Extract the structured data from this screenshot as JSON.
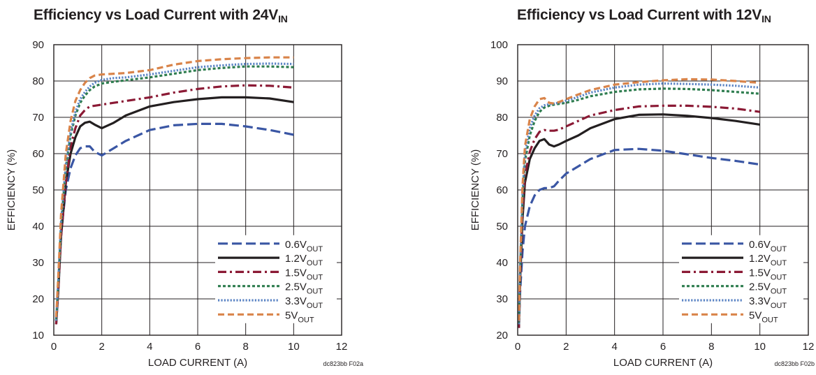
{
  "chart_data": [
    {
      "type": "line",
      "title": "Efficiency vs Load Current with 24V",
      "title_sub": "IN",
      "xlabel": "LOAD CURRENT (A)",
      "ylabel": "EFFICIENCY (%)",
      "xlim": [
        0,
        12
      ],
      "ylim": [
        10,
        90
      ],
      "xticks": [
        "0",
        "2",
        "4",
        "6",
        "8",
        "10",
        "12"
      ],
      "yticks": [
        "10",
        "20",
        "30",
        "40",
        "50",
        "60",
        "70",
        "80",
        "90"
      ],
      "grid": true,
      "legend_position": "bottom-right",
      "footnote": "dc823bb F02a",
      "series": [
        {
          "name": "0.6V",
          "name_sub": "OUT",
          "color": "#3a56a4",
          "style": "long-dash",
          "x": [
            0.1,
            0.2,
            0.3,
            0.5,
            0.7,
            0.9,
            1.1,
            1.3,
            1.5,
            1.7,
            2.0,
            2.5,
            3,
            4,
            5,
            6,
            7,
            8,
            9,
            10
          ],
          "y": [
            14,
            25,
            38,
            50,
            56,
            59.5,
            61.5,
            62,
            62,
            60.5,
            59.5,
            61.5,
            63.5,
            66.5,
            67.8,
            68.2,
            68.2,
            67.5,
            66.5,
            65.2
          ]
        },
        {
          "name": "1.2V",
          "name_sub": "OUT",
          "color": "#231f20",
          "style": "solid",
          "x": [
            0.1,
            0.2,
            0.3,
            0.5,
            0.7,
            0.9,
            1.1,
            1.3,
            1.5,
            1.7,
            2.0,
            2.5,
            3,
            4,
            5,
            6,
            7,
            8,
            9,
            10
          ],
          "y": [
            13,
            24,
            37,
            52,
            60,
            64.5,
            67.5,
            68.5,
            68.8,
            68,
            67,
            68.5,
            70.5,
            73,
            74.2,
            75,
            75.5,
            75.5,
            75.2,
            74.2
          ]
        },
        {
          "name": "1.5V",
          "name_sub": "OUT",
          "color": "#8b1a35",
          "style": "dash-dot",
          "x": [
            0.1,
            0.2,
            0.3,
            0.5,
            0.7,
            0.9,
            1.1,
            1.3,
            1.5,
            1.7,
            2.0,
            2.5,
            3,
            4,
            5,
            6,
            7,
            8,
            9,
            10
          ],
          "y": [
            13,
            24,
            37,
            52,
            62,
            67,
            70.5,
            72,
            73,
            73.2,
            73.5,
            74,
            74.5,
            75.5,
            76.8,
            77.8,
            78.5,
            78.8,
            78.7,
            78.2
          ]
        },
        {
          "name": "2.5V",
          "name_sub": "OUT",
          "color": "#2e7d4f",
          "style": "dotted",
          "x": [
            0.1,
            0.2,
            0.3,
            0.5,
            0.7,
            0.9,
            1.1,
            1.3,
            1.5,
            1.7,
            2.0,
            2.5,
            3,
            4,
            5,
            6,
            7,
            8,
            9,
            10
          ],
          "y": [
            14,
            26,
            40,
            56,
            65,
            70.5,
            74,
            76,
            77.5,
            78.5,
            79.3,
            79.8,
            80.2,
            81,
            82,
            83,
            83.6,
            84,
            84,
            83.8
          ]
        },
        {
          "name": "3.3V",
          "name_sub": "OUT",
          "color": "#5b84c4",
          "style": "fine-dotted",
          "x": [
            0.1,
            0.2,
            0.3,
            0.5,
            0.7,
            0.9,
            1.1,
            1.3,
            1.5,
            1.7,
            2.0,
            2.5,
            3,
            4,
            5,
            6,
            7,
            8,
            9,
            10
          ],
          "y": [
            14,
            27,
            41,
            57,
            66,
            71.5,
            75,
            77,
            78.5,
            79.5,
            80.3,
            80.8,
            81,
            81.8,
            82.8,
            83.8,
            84.3,
            84.7,
            84.8,
            84.7
          ]
        },
        {
          "name": "5V",
          "name_sub": "OUT",
          "color": "#d9844a",
          "style": "dash",
          "x": [
            0.1,
            0.2,
            0.3,
            0.5,
            0.7,
            0.9,
            1.1,
            1.3,
            1.5,
            1.7,
            2.0,
            2.5,
            3,
            4,
            5,
            6,
            7,
            8,
            9,
            10
          ],
          "y": [
            15,
            28,
            43,
            60,
            69,
            74.5,
            77.5,
            79.5,
            80.8,
            81.5,
            81.8,
            82,
            82.2,
            83,
            84.5,
            85.5,
            86,
            86.3,
            86.5,
            86.5
          ]
        }
      ]
    },
    {
      "type": "line",
      "title": "Efficiency vs Load Current with 12V",
      "title_sub": "IN",
      "xlabel": "LOAD CURRENT (A)",
      "ylabel": "EFFICIENCY (%)",
      "xlim": [
        0,
        12
      ],
      "ylim": [
        20,
        100
      ],
      "xticks": [
        "0",
        "2",
        "4",
        "6",
        "8",
        "10",
        "12"
      ],
      "yticks": [
        "20",
        "30",
        "40",
        "50",
        "60",
        "70",
        "80",
        "90",
        "100"
      ],
      "grid": true,
      "legend_position": "bottom-right",
      "footnote": "dc823bb F02b",
      "series": [
        {
          "name": "0.6V",
          "name_sub": "OUT",
          "color": "#3a56a4",
          "style": "long-dash",
          "x": [
            0.05,
            0.1,
            0.2,
            0.3,
            0.5,
            0.7,
            0.9,
            1.1,
            1.3,
            1.5,
            1.7,
            2.0,
            2.5,
            3,
            4,
            5,
            6,
            7,
            8,
            9,
            10
          ],
          "y": [
            22,
            32,
            43,
            50,
            55.5,
            58.5,
            60,
            60.5,
            60.5,
            61,
            62.5,
            64.5,
            66.5,
            68.5,
            71,
            71.3,
            70.8,
            69.8,
            68.8,
            68,
            67
          ]
        },
        {
          "name": "1.2V",
          "name_sub": "OUT",
          "color": "#231f20",
          "style": "solid",
          "x": [
            0.05,
            0.1,
            0.2,
            0.3,
            0.5,
            0.7,
            0.9,
            1.1,
            1.3,
            1.5,
            1.7,
            2.0,
            2.5,
            3,
            4,
            5,
            6,
            7,
            8,
            9,
            10
          ],
          "y": [
            22,
            35,
            52,
            62,
            68.5,
            71.5,
            73.5,
            74,
            72.5,
            72,
            72.5,
            73.5,
            75,
            77,
            79.5,
            80.7,
            80.8,
            80.4,
            79.8,
            79,
            78
          ]
        },
        {
          "name": "1.5V",
          "name_sub": "OUT",
          "color": "#8b1a35",
          "style": "dash-dot",
          "x": [
            0.05,
            0.1,
            0.2,
            0.3,
            0.5,
            0.7,
            0.9,
            1.1,
            1.3,
            1.5,
            1.7,
            2.0,
            2.5,
            3,
            4,
            5,
            6,
            7,
            8,
            9,
            10
          ],
          "y": [
            22,
            36,
            54,
            64,
            70.5,
            74,
            76,
            76.5,
            76.3,
            76.3,
            76.6,
            77.5,
            79,
            80.5,
            82,
            83,
            83.2,
            83.2,
            82.9,
            82.4,
            81.5
          ]
        },
        {
          "name": "2.5V",
          "name_sub": "OUT",
          "color": "#2e7d4f",
          "style": "dotted",
          "x": [
            0.05,
            0.1,
            0.2,
            0.3,
            0.5,
            0.7,
            0.9,
            1.1,
            1.3,
            1.5,
            1.7,
            2.0,
            2.5,
            3,
            4,
            5,
            6,
            7,
            8,
            9,
            10
          ],
          "y": [
            23,
            38,
            57,
            68,
            75,
            79,
            81.5,
            82.7,
            83.2,
            83.5,
            83.7,
            84,
            84.8,
            85.8,
            87,
            87.7,
            87.9,
            87.8,
            87.5,
            87,
            86.5
          ]
        },
        {
          "name": "3.3V",
          "name_sub": "OUT",
          "color": "#5b84c4",
          "style": "fine-dotted",
          "x": [
            0.05,
            0.1,
            0.2,
            0.3,
            0.5,
            0.7,
            0.9,
            1.1,
            1.3,
            1.5,
            1.7,
            2.0,
            2.5,
            3,
            4,
            5,
            6,
            7,
            8,
            9,
            10
          ],
          "y": [
            23,
            39,
            59,
            70,
            77,
            80.5,
            82.5,
            83.3,
            83.6,
            83.8,
            84,
            84.6,
            85.6,
            86.8,
            88.2,
            89,
            89.3,
            89.2,
            89,
            88.7,
            88.2
          ]
        },
        {
          "name": "5V",
          "name_sub": "OUT",
          "color": "#d9844a",
          "style": "dash",
          "x": [
            0.05,
            0.1,
            0.2,
            0.3,
            0.5,
            0.7,
            0.9,
            1.1,
            1.3,
            1.5,
            1.7,
            2.0,
            2.5,
            3,
            4,
            5,
            6,
            7,
            8,
            9,
            10
          ],
          "y": [
            24,
            40,
            61,
            72,
            79.5,
            83,
            85,
            85.3,
            84,
            83.8,
            84.2,
            85,
            86.3,
            87.5,
            89,
            89.7,
            90.2,
            90.5,
            90.4,
            90,
            89.5
          ]
        }
      ]
    }
  ]
}
